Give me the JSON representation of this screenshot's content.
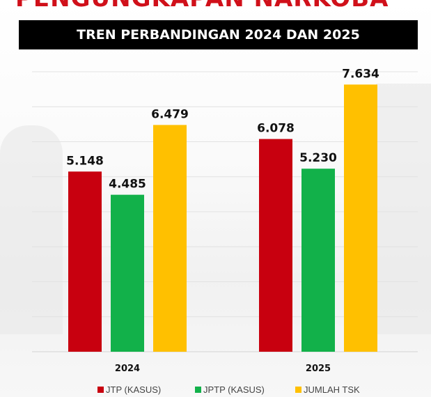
{
  "header": {
    "title": "PENGUNGKAPAN NARKOBA",
    "banner": "TREN PERBANDINGAN 2024 DAN 2025"
  },
  "chart_data": {
    "type": "bar",
    "title": "TREN PERBANDINGAN 2024 DAN 2025",
    "categories": [
      "2024",
      "2025"
    ],
    "series": [
      {
        "name": "JTP (KASUS)",
        "color": "#c8000f",
        "values": [
          5148,
          6078
        ],
        "labels": [
          "5.148",
          "6.078"
        ]
      },
      {
        "name": "JPTP (KASUS)",
        "color": "#12b14a",
        "values": [
          4485,
          5230
        ],
        "labels": [
          "4.485",
          "5.230"
        ]
      },
      {
        "name": "JUMLAH TSK",
        "color": "#ffc000",
        "values": [
          6479,
          7634
        ],
        "labels": [
          "6.479",
          "7.634"
        ]
      }
    ],
    "ylim": [
      0,
      8000
    ],
    "grid": true,
    "legend": "bottom",
    "xlabel": "",
    "ylabel": ""
  }
}
